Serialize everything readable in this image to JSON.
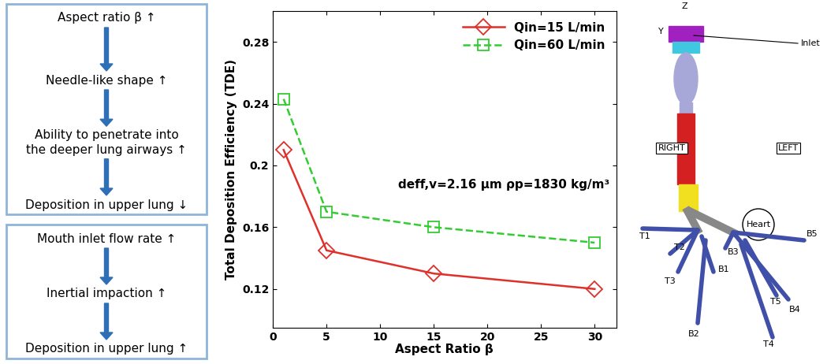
{
  "chart_data": {
    "type": "line",
    "x": [
      1,
      5,
      15,
      30
    ],
    "series": [
      {
        "name": "Qin=15 L/min",
        "color": "#e0302a",
        "marker": "diamond",
        "line_style": "solid",
        "values": [
          0.21,
          0.145,
          0.13,
          0.12
        ]
      },
      {
        "name": "Qin=60 L/min",
        "color": "#33cc33",
        "marker": "square",
        "line_style": "dashed",
        "values": [
          0.243,
          0.17,
          0.16,
          0.15
        ]
      }
    ],
    "x_label": "Aspect Ratio β",
    "y_label": "Total Deposition Efficiency (TDE)",
    "annotations": [
      "deff,v=2.16 μm ρp=1830 kg/m³"
    ],
    "xlim": [
      0,
      32
    ],
    "xticks": [
      0,
      5,
      10,
      15,
      20,
      25,
      30
    ],
    "ylim": [
      0.095,
      0.3
    ],
    "yticks": [
      0.12,
      0.16,
      0.2,
      0.24,
      0.28
    ],
    "legend": "upper right"
  },
  "flowchart": [
    [
      "Aspect ratio β ↑",
      "Needle-like shape ↑",
      "Ability to penetrate into\nthe deeper lung airways ↑",
      "Deposition in upper lung ↓"
    ],
    [
      "Mouth inlet flow rate ↑",
      "Inertial impaction ↑",
      "Deposition in upper lung ↑"
    ]
  ],
  "airway_diagram": {
    "labels": [
      "RIGHT",
      "LEFT",
      "Heart",
      "T1",
      "T2",
      "T3",
      "B1",
      "B2",
      "B3",
      "B4",
      "B5",
      "T4",
      "T5",
      "Inlet",
      "Z",
      "Y"
    ]
  }
}
